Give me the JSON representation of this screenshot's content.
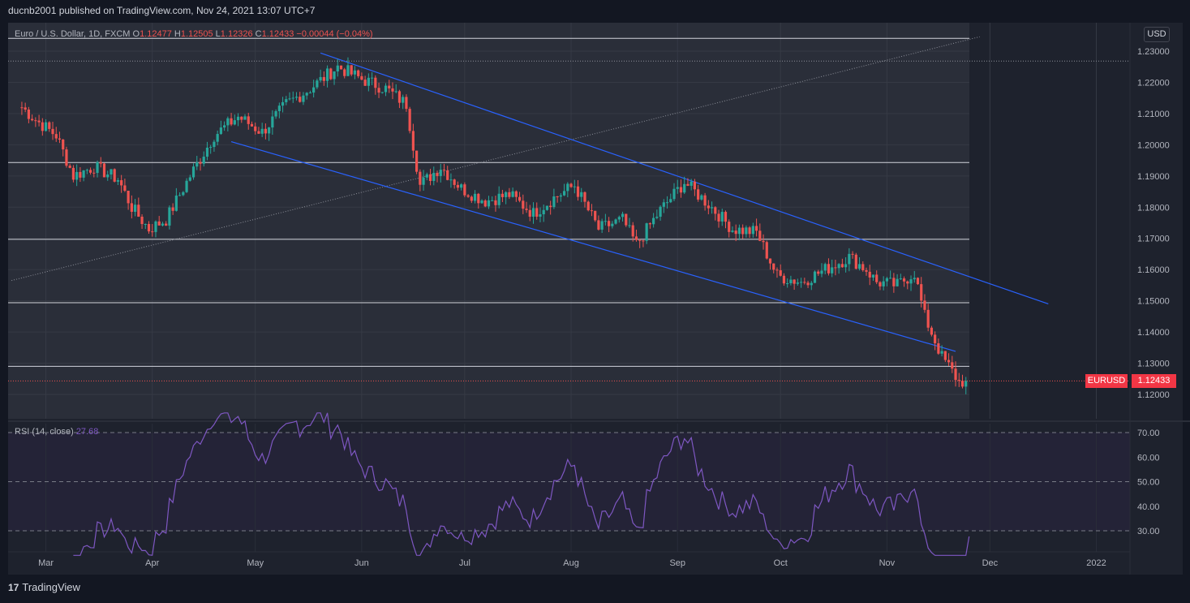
{
  "publisher_line": "ducnb2001 published on TradingView.com, Nov 24, 2021 13:07 UTC+7",
  "legend": {
    "title": "Euro / U.S. Dollar, 1D, FXCM",
    "o_label": "O",
    "o": "1.12477",
    "h_label": "H",
    "h": "1.12505",
    "l_label": "L",
    "l": "1.12326",
    "c_label": "C",
    "c": "1.12433",
    "change": "−0.00044 (−0.04%)"
  },
  "currency_button": "USD",
  "price_tag": {
    "symbol": "EURUSD",
    "price": "1.12433"
  },
  "rsi_legend": {
    "label": "RSI (14, close)",
    "value": "27.68"
  },
  "footer": {
    "logo": "17",
    "brand": "TradingView"
  },
  "colors": {
    "background": "#131722",
    "pane": "#1e222d",
    "up": "#26a69a",
    "down": "#ef5350",
    "channel": "#2962ff",
    "rsi_line": "#7e57c2"
  },
  "chart_data": {
    "type": "candlestick",
    "symbol": "EURUSD",
    "interval": "1D",
    "price_axis": {
      "ticks": [
        "1.23000",
        "1.22000",
        "1.21000",
        "1.20000",
        "1.19000",
        "1.18000",
        "1.17000",
        "1.16000",
        "1.15000",
        "1.14000",
        "1.13000",
        "1.12000"
      ],
      "range": [
        1.1165,
        1.2341
      ]
    },
    "time_axis": [
      "Mar",
      "Apr",
      "May",
      "Jun",
      "Jul",
      "Aug",
      "Sep",
      "Oct",
      "Nov",
      "Dec",
      "2022"
    ],
    "horizontal_levels": [
      1.2341,
      1.1943,
      1.1697,
      1.1494,
      1.129
    ],
    "dotted_level": 1.2268,
    "close_path": [
      {
        "date": "2021-02-22",
        "close": 1.212
      },
      {
        "date": "2021-02-26",
        "close": 1.208
      },
      {
        "date": "2021-03-04",
        "close": 1.203
      },
      {
        "date": "2021-03-09",
        "close": 1.19
      },
      {
        "date": "2021-03-15",
        "close": 1.193
      },
      {
        "date": "2021-03-22",
        "close": 1.189
      },
      {
        "date": "2021-03-26",
        "close": 1.18
      },
      {
        "date": "2021-03-31",
        "close": 1.173
      },
      {
        "date": "2021-04-05",
        "close": 1.176
      },
      {
        "date": "2021-04-12",
        "close": 1.19
      },
      {
        "date": "2021-04-19",
        "close": 1.203
      },
      {
        "date": "2021-04-26",
        "close": 1.209
      },
      {
        "date": "2021-05-03",
        "close": 1.204
      },
      {
        "date": "2021-05-10",
        "close": 1.213
      },
      {
        "date": "2021-05-17",
        "close": 1.218
      },
      {
        "date": "2021-05-25",
        "close": 1.225
      },
      {
        "date": "2021-06-01",
        "close": 1.221
      },
      {
        "date": "2021-06-08",
        "close": 1.218
      },
      {
        "date": "2021-06-14",
        "close": 1.213
      },
      {
        "date": "2021-06-18",
        "close": 1.187
      },
      {
        "date": "2021-06-24",
        "close": 1.193
      },
      {
        "date": "2021-06-30",
        "close": 1.186
      },
      {
        "date": "2021-07-07",
        "close": 1.182
      },
      {
        "date": "2021-07-14",
        "close": 1.184
      },
      {
        "date": "2021-07-21",
        "close": 1.178
      },
      {
        "date": "2021-07-27",
        "close": 1.183
      },
      {
        "date": "2021-08-02",
        "close": 1.187
      },
      {
        "date": "2021-08-09",
        "close": 1.173
      },
      {
        "date": "2021-08-16",
        "close": 1.176
      },
      {
        "date": "2021-08-20",
        "close": 1.168
      },
      {
        "date": "2021-08-27",
        "close": 1.179
      },
      {
        "date": "2021-09-03",
        "close": 1.188
      },
      {
        "date": "2021-09-10",
        "close": 1.181
      },
      {
        "date": "2021-09-17",
        "close": 1.173
      },
      {
        "date": "2021-09-24",
        "close": 1.172
      },
      {
        "date": "2021-09-30",
        "close": 1.158
      },
      {
        "date": "2021-10-07",
        "close": 1.156
      },
      {
        "date": "2021-10-14",
        "close": 1.16
      },
      {
        "date": "2021-10-21",
        "close": 1.164
      },
      {
        "date": "2021-10-26",
        "close": 1.16
      },
      {
        "date": "2021-10-29",
        "close": 1.156
      },
      {
        "date": "2021-11-04",
        "close": 1.155
      },
      {
        "date": "2021-11-09",
        "close": 1.159
      },
      {
        "date": "2021-11-12",
        "close": 1.145
      },
      {
        "date": "2021-11-17",
        "close": 1.132
      },
      {
        "date": "2021-11-19",
        "close": 1.129
      },
      {
        "date": "2021-11-22",
        "close": 1.124
      },
      {
        "date": "2021-11-24",
        "close": 1.12433
      }
    ],
    "rsi": {
      "period": 14,
      "levels": [
        70,
        50,
        30
      ],
      "ticks": [
        "70.00",
        "60.00",
        "50.00",
        "40.00",
        "30.00"
      ],
      "current": 27.68
    }
  }
}
